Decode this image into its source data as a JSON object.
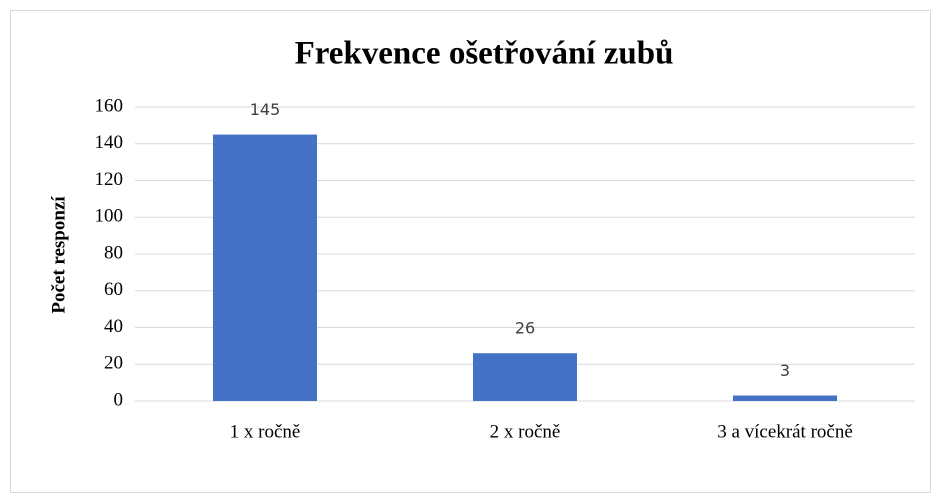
{
  "chart_data": {
    "type": "bar",
    "title": "Frekvence ošetřování zubů",
    "y_label": "Počet responzí",
    "categories": [
      "1 x ročně",
      "2 x ročně",
      "3 a vícekrát ročně"
    ],
    "values": [
      145,
      26,
      3
    ],
    "color": "#4472c4",
    "ylim": [
      0,
      160
    ],
    "yticks": [
      0,
      20,
      40,
      60,
      80,
      100,
      120,
      140,
      160
    ],
    "grid": true,
    "data_labels": true
  }
}
